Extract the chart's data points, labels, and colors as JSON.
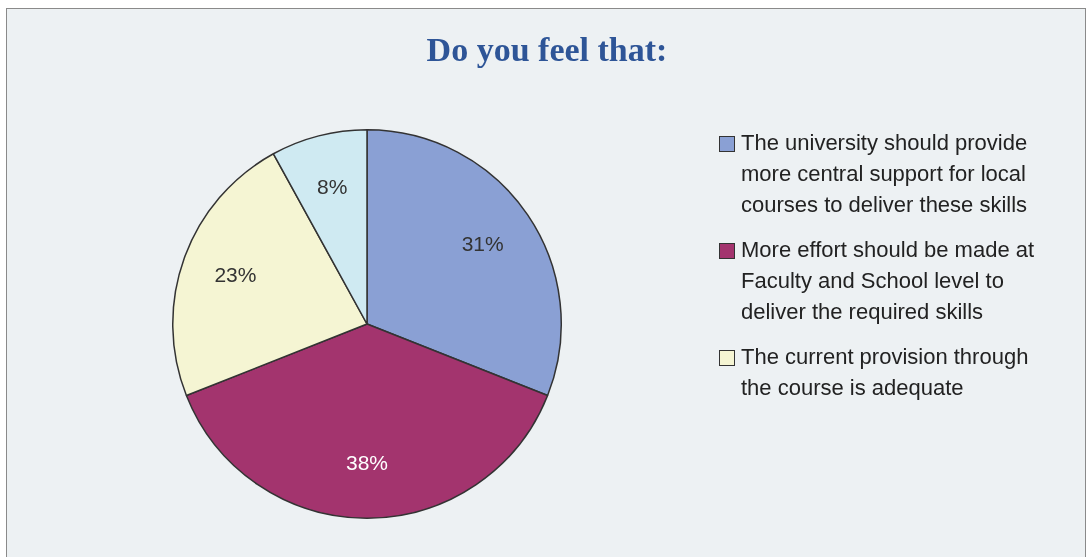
{
  "chart_data": {
    "type": "pie",
    "title": "Do you feel that:",
    "categories": [
      "The university should provide more central support for local courses to deliver these skills",
      "More effort should be made at Faculty and School level to deliver the required skills",
      "The current provision through the course is adequate",
      null
    ],
    "values": [
      31,
      38,
      23,
      8
    ],
    "colors": [
      "#8aa0d4",
      "#a3346e",
      "#f5f5d3",
      "#cfeaf2"
    ],
    "value_labels": [
      "31%",
      "38%",
      "23%",
      "8%"
    ],
    "legend": "right"
  }
}
